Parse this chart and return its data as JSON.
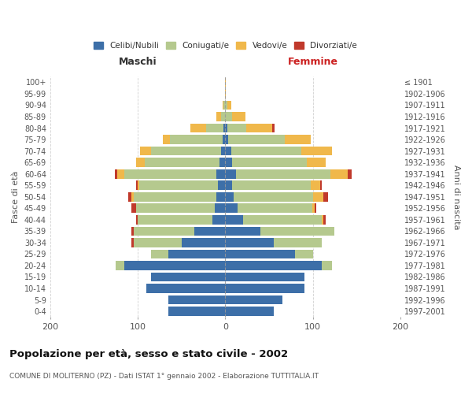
{
  "age_groups": [
    "0-4",
    "5-9",
    "10-14",
    "15-19",
    "20-24",
    "25-29",
    "30-34",
    "35-39",
    "40-44",
    "45-49",
    "50-54",
    "55-59",
    "60-64",
    "65-69",
    "70-74",
    "75-79",
    "80-84",
    "85-89",
    "90-94",
    "95-99",
    "100+"
  ],
  "birth_years": [
    "1997-2001",
    "1992-1996",
    "1987-1991",
    "1982-1986",
    "1977-1981",
    "1972-1976",
    "1967-1971",
    "1962-1966",
    "1957-1961",
    "1952-1956",
    "1947-1951",
    "1942-1946",
    "1937-1941",
    "1932-1936",
    "1927-1931",
    "1922-1926",
    "1917-1921",
    "1912-1916",
    "1907-1911",
    "1902-1906",
    "≤ 1901"
  ],
  "male_celibi": [
    65,
    65,
    90,
    85,
    115,
    65,
    50,
    35,
    15,
    12,
    10,
    8,
    10,
    7,
    5,
    3,
    2,
    0,
    0,
    0,
    0
  ],
  "male_coniugati": [
    0,
    0,
    0,
    0,
    10,
    20,
    55,
    70,
    85,
    90,
    95,
    90,
    105,
    85,
    80,
    60,
    20,
    5,
    2,
    0,
    0
  ],
  "male_vedovi": [
    0,
    0,
    0,
    0,
    0,
    0,
    0,
    0,
    0,
    0,
    2,
    2,
    8,
    10,
    12,
    8,
    18,
    5,
    1,
    0,
    0
  ],
  "male_divorziati": [
    0,
    0,
    0,
    0,
    0,
    0,
    2,
    2,
    2,
    5,
    4,
    2,
    3,
    0,
    0,
    0,
    0,
    0,
    0,
    0,
    0
  ],
  "female_celibi": [
    55,
    65,
    90,
    90,
    110,
    80,
    55,
    40,
    20,
    14,
    10,
    8,
    12,
    8,
    7,
    3,
    2,
    0,
    0,
    0,
    0
  ],
  "female_coniugati": [
    0,
    0,
    0,
    0,
    12,
    20,
    55,
    85,
    90,
    85,
    90,
    90,
    108,
    85,
    80,
    65,
    22,
    8,
    2,
    0,
    0
  ],
  "female_vedovi": [
    0,
    0,
    0,
    0,
    0,
    0,
    0,
    0,
    2,
    3,
    12,
    10,
    20,
    22,
    35,
    30,
    30,
    15,
    5,
    1,
    1
  ],
  "female_divorziati": [
    0,
    0,
    0,
    0,
    0,
    0,
    0,
    0,
    3,
    2,
    5,
    2,
    4,
    0,
    0,
    0,
    2,
    0,
    0,
    0,
    0
  ],
  "color_celibi": "#3d6fa8",
  "color_coniugati": "#b5c98e",
  "color_vedovi": "#f0b84b",
  "color_divorziati": "#c0392b",
  "title": "Popolazione per età, sesso e stato civile - 2002",
  "subtitle": "COMUNE DI MOLITERNO (PZ) - Dati ISTAT 1° gennaio 2002 - Elaborazione TUTTITALIA.IT",
  "xlabel_left": "Maschi",
  "xlabel_right": "Femmine",
  "ylabel_left": "Fasce di età",
  "ylabel_right": "Anni di nascita",
  "xlim": 200,
  "bg_color": "#ffffff",
  "grid_color": "#cccccc",
  "bar_height": 0.8
}
